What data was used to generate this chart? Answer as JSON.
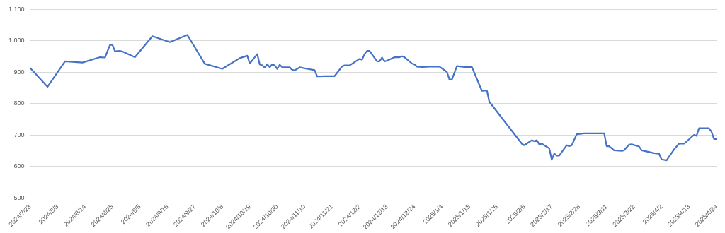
{
  "chart_data": {
    "type": "line",
    "grid": "y",
    "legend": false,
    "marker": "none",
    "line_style": "solid",
    "xlim": [
      "2024-07-23",
      "2025-04-24"
    ],
    "xticks": [
      {
        "value": "2024-07-23",
        "label": "2024/7/23"
      },
      {
        "value": "2024-08-03",
        "label": "2024/8/3"
      },
      {
        "value": "2024-08-14",
        "label": "2024/8/14"
      },
      {
        "value": "2024-08-25",
        "label": "2024/8/25"
      },
      {
        "value": "2024-09-05",
        "label": "2024/9/5"
      },
      {
        "value": "2024-09-16",
        "label": "2024/9/16"
      },
      {
        "value": "2024-09-27",
        "label": "2024/9/27"
      },
      {
        "value": "2024-10-08",
        "label": "2024/10/8"
      },
      {
        "value": "2024-10-19",
        "label": "2024/10/19"
      },
      {
        "value": "2024-10-30",
        "label": "2024/10/30"
      },
      {
        "value": "2024-11-10",
        "label": "2024/11/10"
      },
      {
        "value": "2024-11-21",
        "label": "2024/11/21"
      },
      {
        "value": "2024-12-02",
        "label": "2024/12/2"
      },
      {
        "value": "2024-12-13",
        "label": "2024/12/13"
      },
      {
        "value": "2024-12-24",
        "label": "2024/12/24"
      },
      {
        "value": "2025-01-04",
        "label": "2025/1/4"
      },
      {
        "value": "2025-01-15",
        "label": "2025/1/15"
      },
      {
        "value": "2025-01-26",
        "label": "2025/1/26"
      },
      {
        "value": "2025-02-06",
        "label": "2025/2/6"
      },
      {
        "value": "2025-02-17",
        "label": "2025/2/17"
      },
      {
        "value": "2025-02-28",
        "label": "2025/2/28"
      },
      {
        "value": "2025-03-11",
        "label": "2025/3/11"
      },
      {
        "value": "2025-03-22",
        "label": "2025/3/22"
      },
      {
        "value": "2025-04-02",
        "label": "2025/4/2"
      },
      {
        "value": "2025-04-13",
        "label": "2025/4/13"
      },
      {
        "value": "2025-04-24",
        "label": "2025/4/24"
      }
    ],
    "ylim": [
      500,
      1100
    ],
    "yticks": [
      {
        "value": 500,
        "label": "500"
      },
      {
        "value": 600,
        "label": "600"
      },
      {
        "value": 700,
        "label": "700"
      },
      {
        "value": 800,
        "label": "800"
      },
      {
        "value": 900,
        "label": "900"
      },
      {
        "value": 1000,
        "label": "1,000"
      },
      {
        "value": 1100,
        "label": "1,100"
      }
    ],
    "x": [
      "2024-07-23",
      "2024-07-30",
      "2024-08-06",
      "2024-08-13",
      "2024-08-20",
      "2024-08-22",
      "2024-08-24",
      "2024-08-25",
      "2024-08-26",
      "2024-08-28",
      "2024-08-29",
      "2024-09-03",
      "2024-09-10",
      "2024-09-17",
      "2024-09-24",
      "2024-10-01",
      "2024-10-08",
      "2024-10-15",
      "2024-10-18",
      "2024-10-19",
      "2024-10-21",
      "2024-10-22",
      "2024-10-23",
      "2024-10-24",
      "2024-10-25",
      "2024-10-26",
      "2024-10-27",
      "2024-10-28",
      "2024-10-29",
      "2024-10-30",
      "2024-10-31",
      "2024-11-01",
      "2024-11-04",
      "2024-11-05",
      "2024-11-06",
      "2024-11-08",
      "2024-11-11",
      "2024-11-14",
      "2024-11-15",
      "2024-11-18",
      "2024-11-22",
      "2024-11-25",
      "2024-11-26",
      "2024-11-28",
      "2024-12-02",
      "2024-12-03",
      "2024-12-04",
      "2024-12-05",
      "2024-12-06",
      "2024-12-09",
      "2024-12-10",
      "2024-12-11",
      "2024-12-12",
      "2024-12-13",
      "2024-12-16",
      "2024-12-18",
      "2024-12-19",
      "2024-12-20",
      "2024-12-23",
      "2024-12-24",
      "2024-12-25",
      "2024-12-27",
      "2024-12-30",
      "2025-01-03",
      "2025-01-06",
      "2025-01-07",
      "2025-01-08",
      "2025-01-10",
      "2025-01-13",
      "2025-01-16",
      "2025-01-20",
      "2025-01-22",
      "2025-01-23",
      "2025-02-05",
      "2025-02-06",
      "2025-02-09",
      "2025-02-10",
      "2025-02-11",
      "2025-02-12",
      "2025-02-13",
      "2025-02-16",
      "2025-02-17",
      "2025-02-18",
      "2025-02-19",
      "2025-02-20",
      "2025-02-23",
      "2025-02-24",
      "2025-02-25",
      "2025-02-27",
      "2025-03-02",
      "2025-03-10",
      "2025-03-11",
      "2025-03-12",
      "2025-03-14",
      "2025-03-17",
      "2025-03-18",
      "2025-03-20",
      "2025-03-21",
      "2025-03-24",
      "2025-03-25",
      "2025-03-30",
      "2025-04-01",
      "2025-04-02",
      "2025-04-04",
      "2025-04-07",
      "2025-04-09",
      "2025-04-11",
      "2025-04-15",
      "2025-04-16",
      "2025-04-17",
      "2025-04-21",
      "2025-04-22",
      "2025-04-23",
      "2025-04-24"
    ],
    "series": [
      {
        "color": "#4472c4",
        "values": [
          914,
          854,
          935,
          931,
          948,
          947,
          987,
          987,
          967,
          968,
          966,
          948,
          1015,
          996,
          1019,
          927,
          911,
          945,
          953,
          928,
          948,
          958,
          925,
          922,
          915,
          926,
          916,
          925,
          922,
          911,
          924,
          916,
          916,
          908,
          906,
          916,
          911,
          907,
          887,
          888,
          888,
          919,
          922,
          922,
          943,
          940,
          958,
          968,
          968,
          935,
          935,
          947,
          935,
          937,
          948,
          948,
          951,
          948,
          928,
          925,
          918,
          917,
          918,
          918,
          901,
          877,
          877,
          920,
          917,
          917,
          841,
          842,
          806,
          673,
          668,
          684,
          681,
          684,
          671,
          673,
          658,
          622,
          641,
          635,
          635,
          668,
          665,
          668,
          703,
          706,
          706,
          665,
          665,
          652,
          650,
          652,
          670,
          671,
          664,
          652,
          643,
          641,
          623,
          620,
          655,
          673,
          673,
          701,
          698,
          722,
          722,
          711,
          688,
          688
        ]
      }
    ]
  }
}
